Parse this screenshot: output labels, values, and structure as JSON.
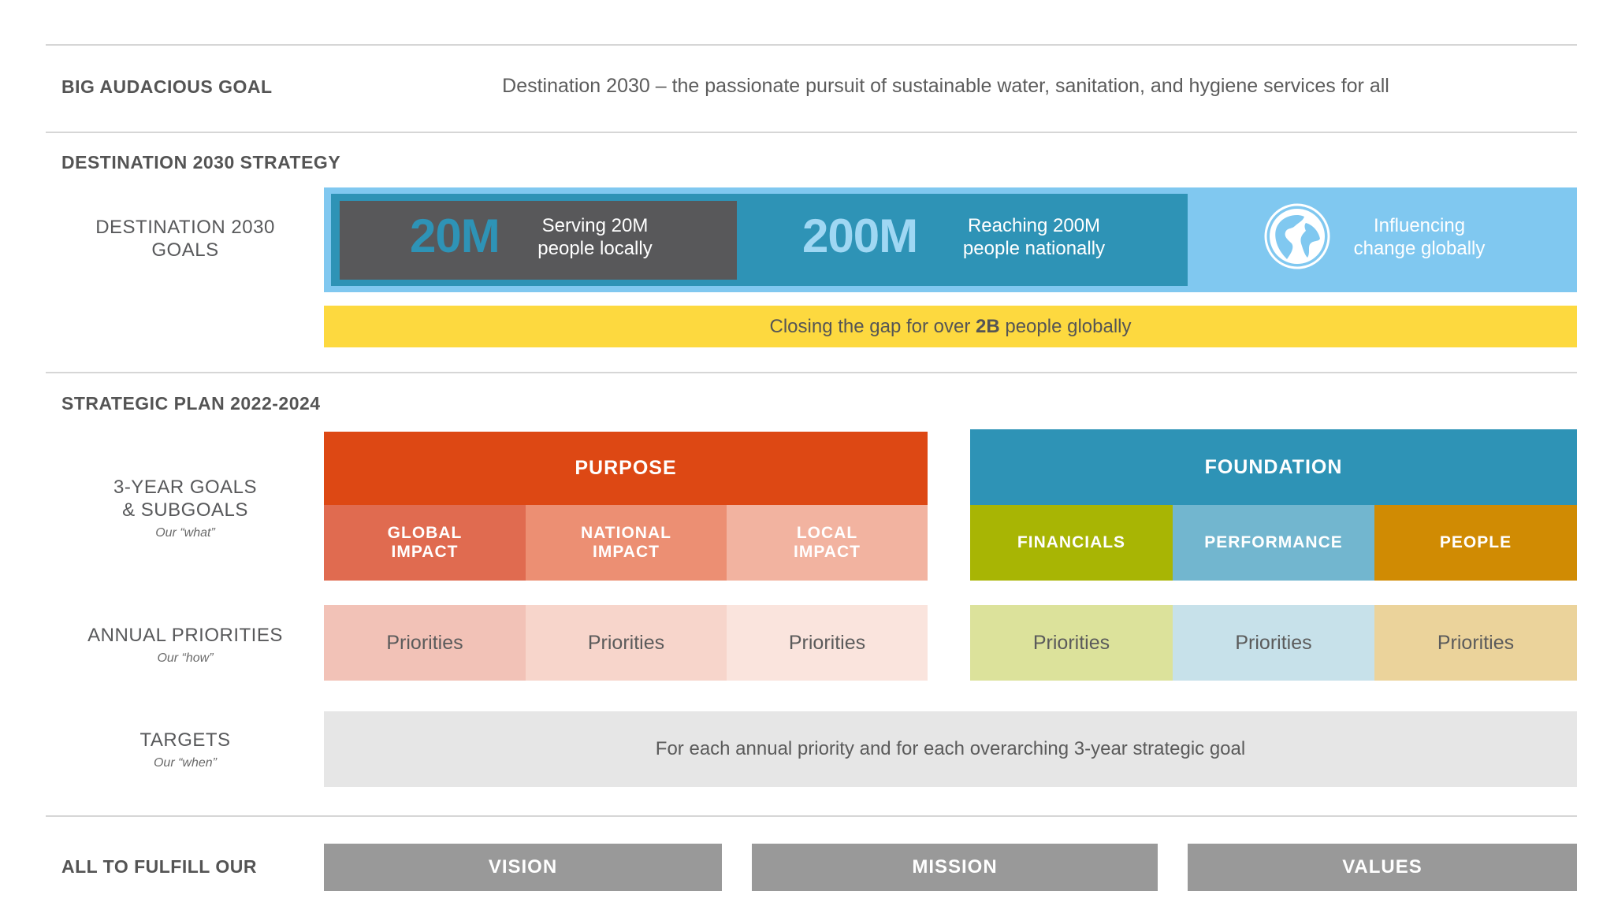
{
  "bag": {
    "label": "BIG AUDACIOUS GOAL",
    "text": "Destination 2030 – the passionate pursuit of sustainable water, sanitation, and hygiene services for all"
  },
  "strategy": {
    "label": "DESTINATION 2030 STRATEGY",
    "row_label_line1": "DESTINATION 2030",
    "row_label_line2": "GOALS",
    "goals": [
      {
        "number": "20M",
        "text_line1": "Serving 20M",
        "text_line2": "people locally",
        "color": "#58585a"
      },
      {
        "number": "200M",
        "text_line1": "Reaching 200M",
        "text_line2": "people nationally",
        "color": "#2e93b6"
      },
      {
        "icon": "globe-icon",
        "text_line1": "Influencing",
        "text_line2": "change globally",
        "color": "#80c8f0"
      }
    ],
    "gap_banner_pre": "Closing the gap for over ",
    "gap_banner_bold": "2B",
    "gap_banner_post": " people globally",
    "gap_color": "#fdd93f"
  },
  "plan": {
    "label": "STRATEGIC PLAN 2022-2024",
    "goals_label_line1": "3-YEAR GOALS",
    "goals_label_line2": "& SUBGOALS",
    "goals_sub": "Our “what”",
    "priorities_label": "ANNUAL PRIORITIES",
    "priorities_sub": "Our “how”",
    "targets_label": "TARGETS",
    "targets_sub": "Our “when”",
    "purpose": {
      "title": "PURPOSE",
      "color": "#dd4814",
      "subgoals": [
        {
          "line1": "GLOBAL",
          "line2": "IMPACT",
          "color": "#e06b50",
          "priority": "Priorities",
          "priority_color": "#f2c2b7"
        },
        {
          "line1": "NATIONAL",
          "line2": "IMPACT",
          "color": "#ec8f73",
          "priority": "Priorities",
          "priority_color": "#f7d5cb"
        },
        {
          "line1": "LOCAL",
          "line2": "IMPACT",
          "color": "#f2b3a0",
          "priority": "Priorities",
          "priority_color": "#fae4dd"
        }
      ]
    },
    "foundation": {
      "title": "FOUNDATION",
      "color": "#2e93b6",
      "subgoals": [
        {
          "label": "FINANCIALS",
          "color": "#a8b504",
          "priority": "Priorities",
          "priority_color": "#dce29b"
        },
        {
          "label": "PERFORMANCE",
          "color": "#72b6cf",
          "priority": "Priorities",
          "priority_color": "#c7e1ea"
        },
        {
          "label": "PEOPLE",
          "color": "#d08b03",
          "priority": "Priorities",
          "priority_color": "#ebd39b"
        }
      ]
    },
    "targets_text": "For each annual priority and for each overarching 3-year strategic goal",
    "targets_color": "#e6e6e6"
  },
  "fulfill": {
    "label": "ALL TO FULFILL OUR",
    "items": [
      "VISION",
      "MISSION",
      "VALUES"
    ],
    "color": "#999999"
  }
}
